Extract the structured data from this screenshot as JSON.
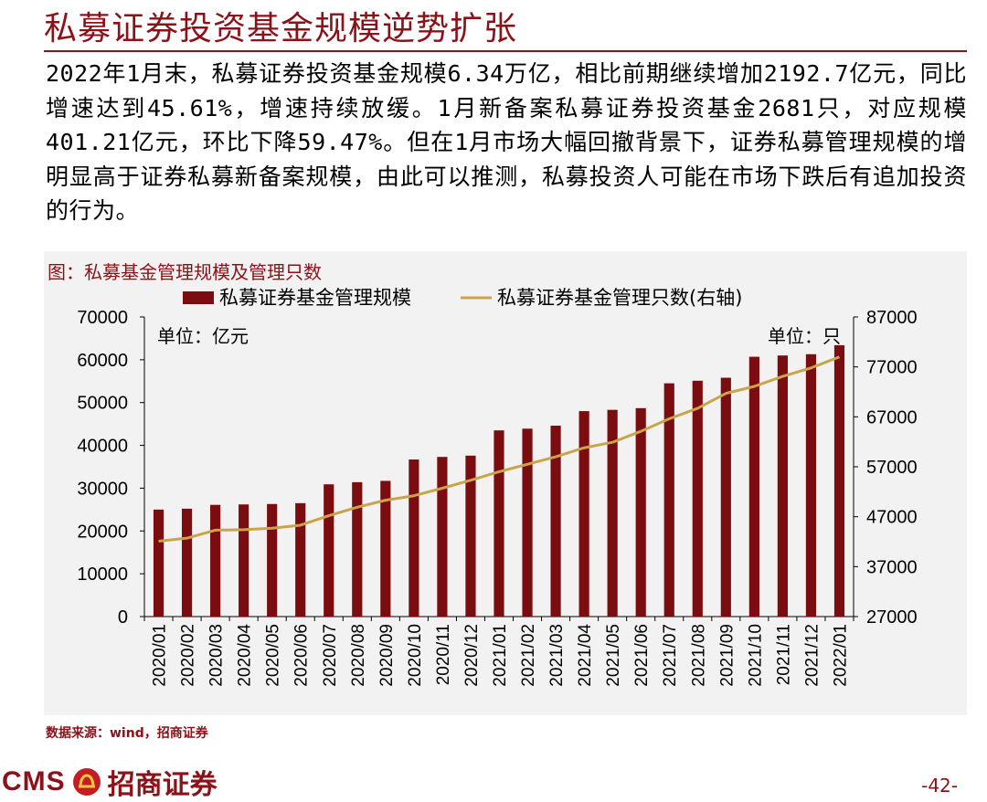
{
  "page": {
    "title": "私募证券投资基金规模逆势扩张",
    "paragraph": "2022年1月末，私募证券投资基金规模6.34万亿，相比前期继续增加2192.7亿元，同比增速达到45.61%，增速持续放缓。1月新备案私募证券投资基金2681只，对应规模401.21亿元，环比下降59.47%。但在1月市场大幅回撤背景下，证券私募管理规模的增明显高于证券私募新备案规模，由此可以推测，私募投资人可能在市场下跌后有追加投资的行为。",
    "source": "数据来源：wind，招商证券",
    "brand_latin": "CMS",
    "brand_name": "招商证券",
    "page_number": "-42-"
  },
  "chart_data": {
    "type": "bar+line",
    "title": "图：私募基金管理规模及管理只数",
    "categories": [
      "2020/01",
      "2020/02",
      "2020/03",
      "2020/04",
      "2020/05",
      "2020/06",
      "2020/07",
      "2020/08",
      "2020/09",
      "2020/10",
      "2020/11",
      "2020/12",
      "2021/01",
      "2021/02",
      "2021/03",
      "2021/04",
      "2021/05",
      "2021/06",
      "2021/07",
      "2021/08",
      "2021/09",
      "2021/10",
      "2021/11",
      "2021/12",
      "2022/01"
    ],
    "series": [
      {
        "name": "私募证券基金管理规模",
        "type": "bar",
        "axis": "left",
        "color": "#7b0c10",
        "values": [
          25000,
          25200,
          26100,
          26200,
          26300,
          26500,
          30900,
          31400,
          31700,
          36700,
          37300,
          37600,
          43500,
          43900,
          44600,
          48000,
          48300,
          48700,
          54500,
          55100,
          55800,
          60700,
          61000,
          61300,
          63400
        ]
      },
      {
        "name": "私募证券基金管理只数(右轴)",
        "type": "line",
        "axis": "right",
        "color": "#c9a44a",
        "values": [
          42100,
          42700,
          44300,
          44400,
          44700,
          45300,
          47200,
          48900,
          50300,
          51200,
          52700,
          54300,
          56000,
          57500,
          59000,
          60800,
          61900,
          64100,
          66600,
          68700,
          71700,
          73100,
          75100,
          76800,
          79000
        ]
      }
    ],
    "left_axis": {
      "unit_label": "单位：亿元",
      "min": 0,
      "max": 70000,
      "ticks": [
        0,
        10000,
        20000,
        30000,
        40000,
        50000,
        60000,
        70000
      ]
    },
    "right_axis": {
      "unit_label": "单位：只",
      "min": 27000,
      "max": 87000,
      "ticks": [
        27000,
        37000,
        47000,
        57000,
        67000,
        77000,
        87000
      ]
    },
    "legend_position": "top-center",
    "grid": false
  }
}
